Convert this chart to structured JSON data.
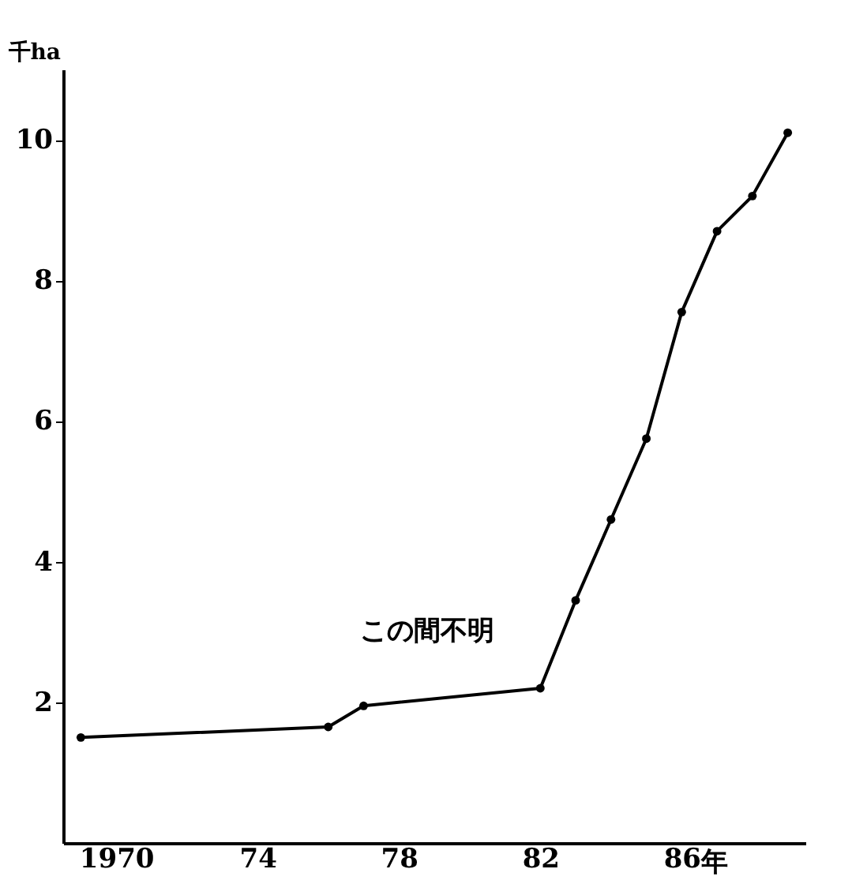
{
  "chart_data": {
    "type": "line",
    "ylabel": "千ha",
    "x": [
      1969,
      1976,
      1977,
      1982,
      1983,
      1984,
      1985,
      1986,
      1987,
      1988,
      1989
    ],
    "series": [
      {
        "color": "#000000",
        "values": [
          1.5,
          1.65,
          1.95,
          2.2,
          3.45,
          4.6,
          5.75,
          7.55,
          8.7,
          9.2,
          10.1
        ]
      }
    ],
    "xlim": [
      1968.5,
      1989.5
    ],
    "ylim": [
      0,
      11
    ],
    "xticks": [
      {
        "value": 1970,
        "label": "1970"
      },
      {
        "value": 1974,
        "label": "74"
      },
      {
        "value": 1978,
        "label": "78"
      },
      {
        "value": 1982,
        "label": "82"
      },
      {
        "value": 1986,
        "label": "86"
      }
    ],
    "xlabel": "年",
    "yticks": [
      2,
      4,
      6,
      8,
      10
    ],
    "marker": "circle",
    "line_style": "solid",
    "grid": false,
    "annotations": [
      "この間不明"
    ]
  }
}
